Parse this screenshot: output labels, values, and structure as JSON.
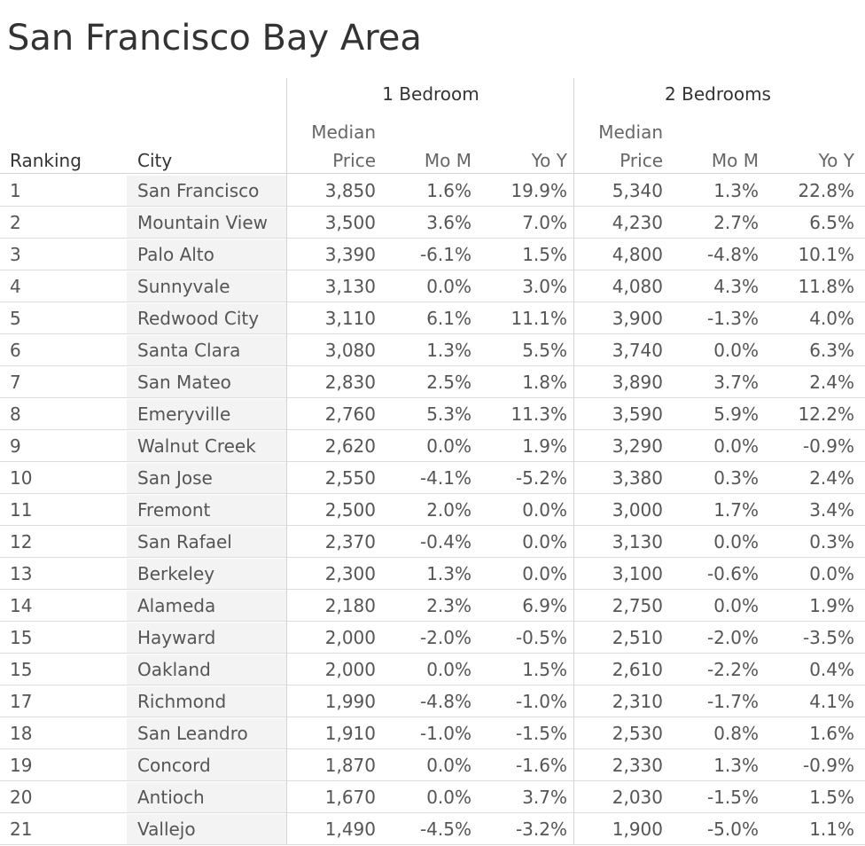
{
  "chart_data": {
    "type": "table",
    "title": "San Francisco Bay Area",
    "groups": [
      {
        "label": "1 Bedroom"
      },
      {
        "label": "2 Bedrooms"
      }
    ],
    "headers": {
      "ranking": "Ranking",
      "city": "City",
      "median_top": "Median",
      "median_bottom": "Price",
      "mom": "Mo M",
      "yoy": "Yo Y"
    },
    "rows": [
      {
        "rank": "1",
        "city": "San Francisco",
        "b1_price": "3,850",
        "b1_mom": "1.6%",
        "b1_yoy": "19.9%",
        "b2_price": "5,340",
        "b2_mom": "1.3%",
        "b2_yoy": "22.8%"
      },
      {
        "rank": "2",
        "city": "Mountain View",
        "b1_price": "3,500",
        "b1_mom": "3.6%",
        "b1_yoy": "7.0%",
        "b2_price": "4,230",
        "b2_mom": "2.7%",
        "b2_yoy": "6.5%"
      },
      {
        "rank": "3",
        "city": "Palo Alto",
        "b1_price": "3,390",
        "b1_mom": "-6.1%",
        "b1_yoy": "1.5%",
        "b2_price": "4,800",
        "b2_mom": "-4.8%",
        "b2_yoy": "10.1%"
      },
      {
        "rank": "4",
        "city": "Sunnyvale",
        "b1_price": "3,130",
        "b1_mom": "0.0%",
        "b1_yoy": "3.0%",
        "b2_price": "4,080",
        "b2_mom": "4.3%",
        "b2_yoy": "11.8%"
      },
      {
        "rank": "5",
        "city": "Redwood City",
        "b1_price": "3,110",
        "b1_mom": "6.1%",
        "b1_yoy": "11.1%",
        "b2_price": "3,900",
        "b2_mom": "-1.3%",
        "b2_yoy": "4.0%"
      },
      {
        "rank": "6",
        "city": "Santa Clara",
        "b1_price": "3,080",
        "b1_mom": "1.3%",
        "b1_yoy": "5.5%",
        "b2_price": "3,740",
        "b2_mom": "0.0%",
        "b2_yoy": "6.3%"
      },
      {
        "rank": "7",
        "city": "San Mateo",
        "b1_price": "2,830",
        "b1_mom": "2.5%",
        "b1_yoy": "1.8%",
        "b2_price": "3,890",
        "b2_mom": "3.7%",
        "b2_yoy": "2.4%"
      },
      {
        "rank": "8",
        "city": "Emeryville",
        "b1_price": "2,760",
        "b1_mom": "5.3%",
        "b1_yoy": "11.3%",
        "b2_price": "3,590",
        "b2_mom": "5.9%",
        "b2_yoy": "12.2%"
      },
      {
        "rank": "9",
        "city": "Walnut Creek",
        "b1_price": "2,620",
        "b1_mom": "0.0%",
        "b1_yoy": "1.9%",
        "b2_price": "3,290",
        "b2_mom": "0.0%",
        "b2_yoy": "-0.9%"
      },
      {
        "rank": "10",
        "city": "San Jose",
        "b1_price": "2,550",
        "b1_mom": "-4.1%",
        "b1_yoy": "-5.2%",
        "b2_price": "3,380",
        "b2_mom": "0.3%",
        "b2_yoy": "2.4%"
      },
      {
        "rank": "11",
        "city": "Fremont",
        "b1_price": "2,500",
        "b1_mom": "2.0%",
        "b1_yoy": "0.0%",
        "b2_price": "3,000",
        "b2_mom": "1.7%",
        "b2_yoy": "3.4%"
      },
      {
        "rank": "12",
        "city": "San Rafael",
        "b1_price": "2,370",
        "b1_mom": "-0.4%",
        "b1_yoy": "0.0%",
        "b2_price": "3,130",
        "b2_mom": "0.0%",
        "b2_yoy": "0.3%"
      },
      {
        "rank": "13",
        "city": "Berkeley",
        "b1_price": "2,300",
        "b1_mom": "1.3%",
        "b1_yoy": "0.0%",
        "b2_price": "3,100",
        "b2_mom": "-0.6%",
        "b2_yoy": "0.0%"
      },
      {
        "rank": "14",
        "city": "Alameda",
        "b1_price": "2,180",
        "b1_mom": "2.3%",
        "b1_yoy": "6.9%",
        "b2_price": "2,750",
        "b2_mom": "0.0%",
        "b2_yoy": "1.9%"
      },
      {
        "rank": "15",
        "city": "Hayward",
        "b1_price": "2,000",
        "b1_mom": "-2.0%",
        "b1_yoy": "-0.5%",
        "b2_price": "2,510",
        "b2_mom": "-2.0%",
        "b2_yoy": "-3.5%"
      },
      {
        "rank": "15",
        "city": "Oakland",
        "b1_price": "2,000",
        "b1_mom": "0.0%",
        "b1_yoy": "1.5%",
        "b2_price": "2,610",
        "b2_mom": "-2.2%",
        "b2_yoy": "0.4%"
      },
      {
        "rank": "17",
        "city": "Richmond",
        "b1_price": "1,990",
        "b1_mom": "-4.8%",
        "b1_yoy": "-1.0%",
        "b2_price": "2,310",
        "b2_mom": "-1.7%",
        "b2_yoy": "4.1%"
      },
      {
        "rank": "18",
        "city": "San Leandro",
        "b1_price": "1,910",
        "b1_mom": "-1.0%",
        "b1_yoy": "-1.5%",
        "b2_price": "2,530",
        "b2_mom": "0.8%",
        "b2_yoy": "1.6%"
      },
      {
        "rank": "19",
        "city": "Concord",
        "b1_price": "1,870",
        "b1_mom": "0.0%",
        "b1_yoy": "-1.6%",
        "b2_price": "2,330",
        "b2_mom": "1.3%",
        "b2_yoy": "-0.9%"
      },
      {
        "rank": "20",
        "city": "Antioch",
        "b1_price": "1,670",
        "b1_mom": "0.0%",
        "b1_yoy": "3.7%",
        "b2_price": "2,030",
        "b2_mom": "-1.5%",
        "b2_yoy": "1.5%"
      },
      {
        "rank": "21",
        "city": "Vallejo",
        "b1_price": "1,490",
        "b1_mom": "-4.5%",
        "b1_yoy": "-3.2%",
        "b2_price": "1,900",
        "b2_mom": "-5.0%",
        "b2_yoy": "1.1%"
      }
    ]
  }
}
